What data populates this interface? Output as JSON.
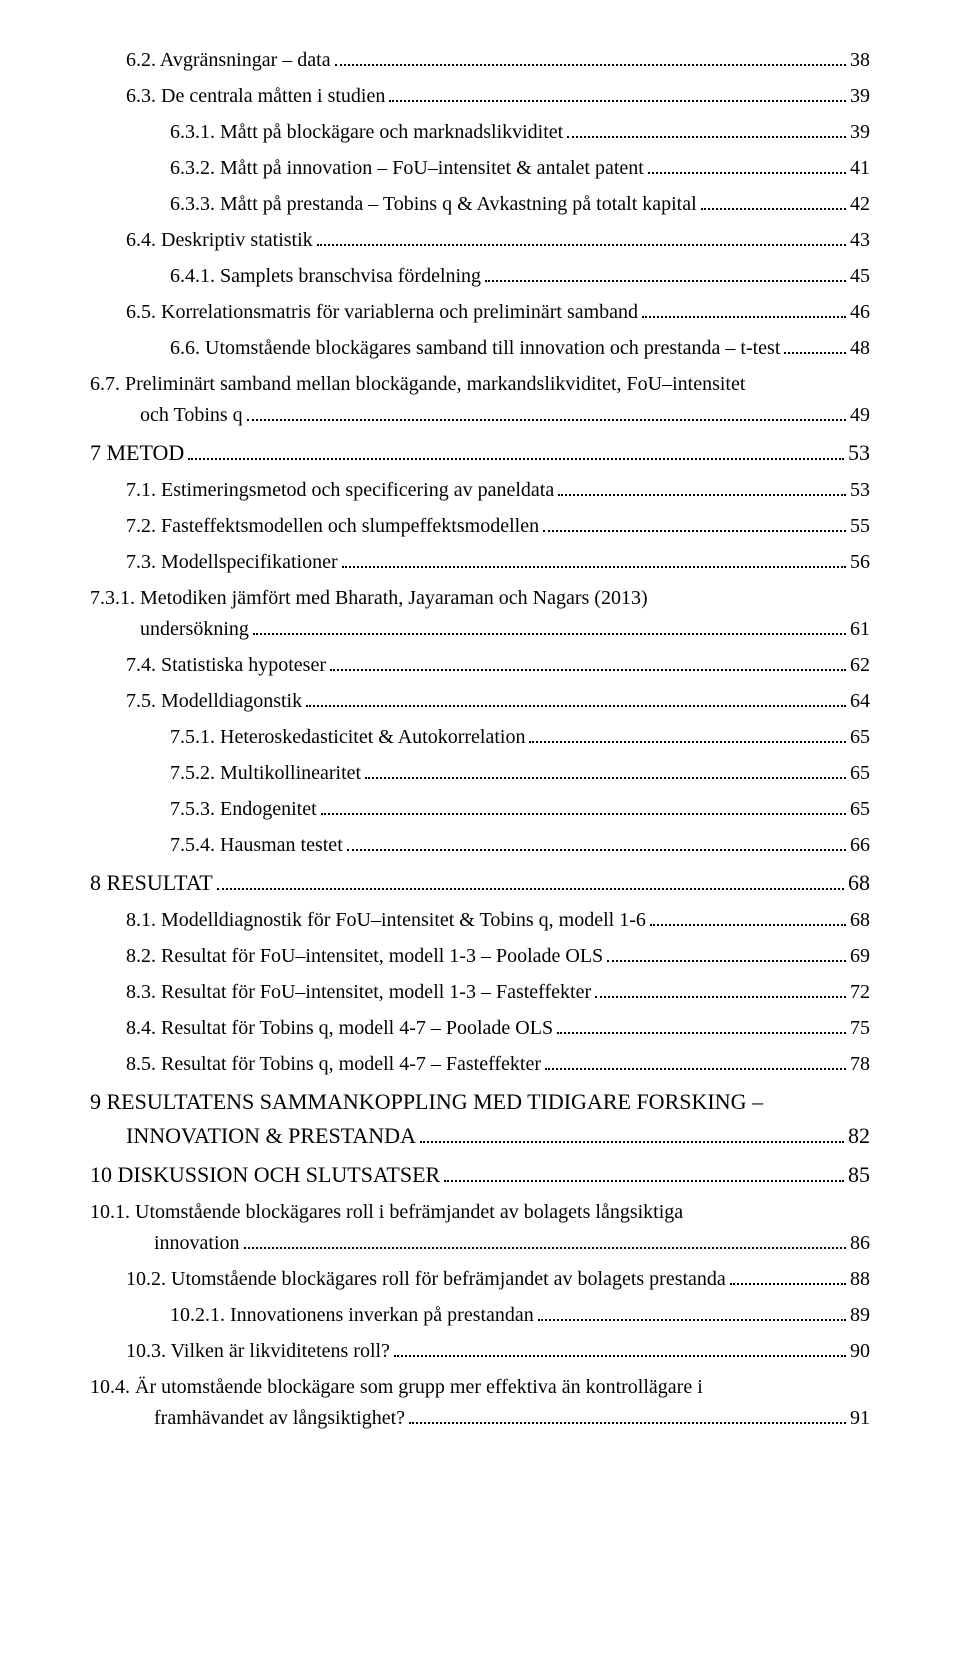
{
  "toc": [
    {
      "level": 1,
      "label": "6.2. Avgränsningar – data",
      "page": "38"
    },
    {
      "level": 1,
      "label": "6.3. De centrala måtten i studien",
      "page": "39"
    },
    {
      "level": 2,
      "label": "6.3.1. Mått på blockägare och marknadslikviditet",
      "page": "39"
    },
    {
      "level": 2,
      "label": "6.3.2. Mått på innovation – FoU–intensitet & antalet patent",
      "page": "41"
    },
    {
      "level": 2,
      "label": "6.3.3. Mått på prestanda – Tobins q & Avkastning på totalt kapital",
      "page": "42"
    },
    {
      "level": 1,
      "label": "6.4. Deskriptiv statistik",
      "page": "43"
    },
    {
      "level": 2,
      "label": "6.4.1. Samplets branschvisa fördelning",
      "page": "45"
    },
    {
      "level": 1,
      "label": "6.5. Korrelationsmatris för variablerna och preliminärt samband",
      "page": "46"
    },
    {
      "level": 2,
      "label": "6.6. Utomstående blockägares samband till innovation och prestanda – t-test",
      "page": "48"
    },
    {
      "level": 2,
      "wrap": true,
      "first": "6.7. Preliminärt samband mellan blockägande, markandslikviditet, FoU–intensitet",
      "last": "och Tobins q",
      "page": "49"
    },
    {
      "level": 0,
      "label": "7 METOD",
      "page": "53"
    },
    {
      "level": 1,
      "label": "7.1. Estimeringsmetod och specificering av paneldata",
      "page": "53"
    },
    {
      "level": 1,
      "label": "7.2. Fasteffektsmodellen och slumpeffektsmodellen",
      "page": "55"
    },
    {
      "level": 1,
      "label": "7.3. Modellspecifikationer",
      "page": "56"
    },
    {
      "level": 2,
      "wrap": true,
      "first": "7.3.1. Metodiken jämfört med Bharath, Jayaraman och Nagars (2013)",
      "last": "undersökning",
      "page": "61"
    },
    {
      "level": 1,
      "label": "7.4. Statistiska hypoteser",
      "page": "62"
    },
    {
      "level": 1,
      "label": "7.5. Modelldiagonstik",
      "page": "64"
    },
    {
      "level": 2,
      "label": "7.5.1. Heteroskedasticitet & Autokorrelation",
      "page": "65"
    },
    {
      "level": 2,
      "label": "7.5.2. Multikollinearitet",
      "page": "65"
    },
    {
      "level": 2,
      "label": "7.5.3. Endogenitet",
      "page": "65"
    },
    {
      "level": 2,
      "label": "7.5.4. Hausman testet",
      "page": "66"
    },
    {
      "level": 0,
      "label": "8 RESULTAT",
      "page": "68"
    },
    {
      "level": 1,
      "label": "8.1. Modelldiagnostik för FoU–intensitet & Tobins q, modell 1-6",
      "page": "68"
    },
    {
      "level": 1,
      "label": "8.2. Resultat för FoU–intensitet, modell 1-3 – Poolade OLS",
      "page": "69"
    },
    {
      "level": 1,
      "label": "8.3. Resultat för FoU–intensitet, modell 1-3 – Fasteffekter",
      "page": "72"
    },
    {
      "level": 1,
      "label": "8.4. Resultat för Tobins q, modell 4-7 – Poolade OLS",
      "page": "75"
    },
    {
      "level": 1,
      "label": "8.5. Resultat för Tobins q, modell 4-7 – Fasteffekter",
      "page": "78"
    },
    {
      "level": 0,
      "wrap": true,
      "first": "9 RESULTATENS SAMMANKOPPLING MED TIDIGARE FORSKING –",
      "last": "INNOVATION & PRESTANDA",
      "page": "82",
      "lastIndent": 36
    },
    {
      "level": 0,
      "label": "10 DISKUSSION OCH SLUTSATSER",
      "page": "85"
    },
    {
      "level": 1,
      "wrap": true,
      "first": "10.1. Utomstående blockägares roll i befrämjandet av bolagets långsiktiga",
      "last": "innovation",
      "page": "86"
    },
    {
      "level": 1,
      "label": "10.2. Utomstående blockägares roll för befrämjandet av bolagets prestanda",
      "page": "88"
    },
    {
      "level": 2,
      "label": "10.2.1. Innovationens inverkan på prestandan",
      "page": "89"
    },
    {
      "level": 1,
      "label": "10.3. Vilken är likviditetens roll?",
      "page": "90"
    },
    {
      "level": 1,
      "wrap": true,
      "first": "10.4. Är utomstående blockägare som grupp mer effektiva än kontrollägare i",
      "last": "framhävandet av långsiktighet?",
      "page": "91"
    }
  ],
  "indentPx": {
    "0": 0,
    "1": 36,
    "2": 80,
    "3": 120
  },
  "wrapLastIndent": {
    "1": 100,
    "2": 130,
    "0": 36
  }
}
